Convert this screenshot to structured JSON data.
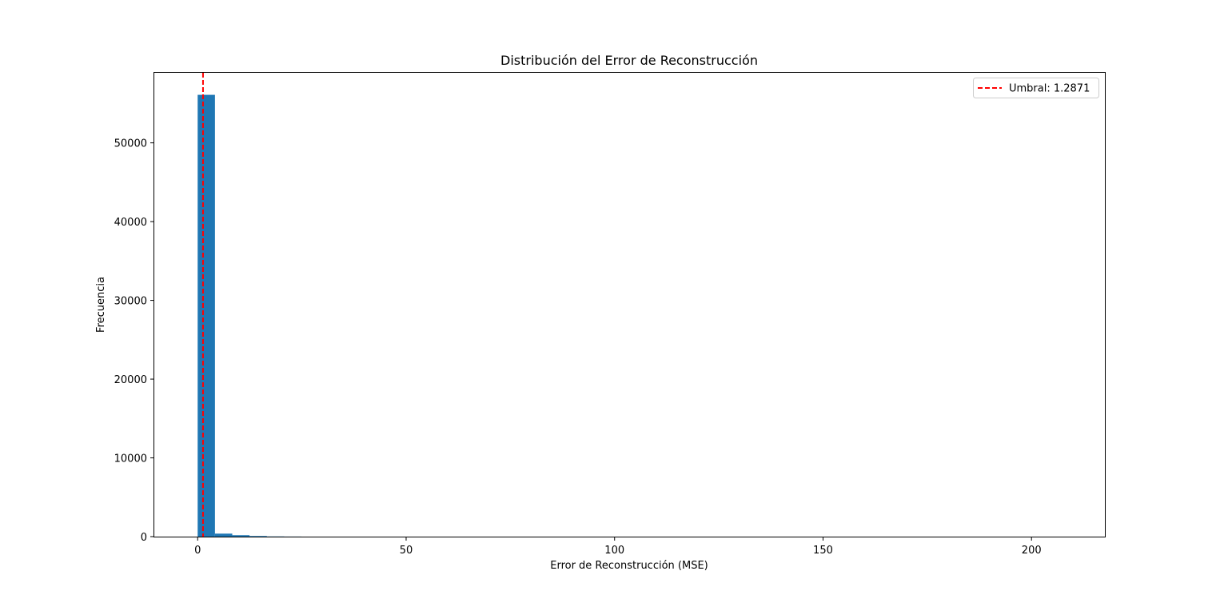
{
  "chart_data": {
    "type": "bar",
    "title": "Distribución del Error de Reconstrucción",
    "xlabel": "Error de Reconstrucción (MSE)",
    "ylabel": "Frecuencia",
    "xlim": [
      -10.4,
      217.6
    ],
    "ylim": [
      0,
      58900
    ],
    "xticks": [
      0,
      50,
      100,
      150,
      200
    ],
    "xtick_labels": [
      "0",
      "50",
      "100",
      "150",
      "200"
    ],
    "yticks": [
      0,
      10000,
      20000,
      30000,
      40000,
      50000
    ],
    "ytick_labels": [
      "0",
      "10000",
      "20000",
      "30000",
      "40000",
      "50000"
    ],
    "bin_width": 4.15,
    "bins": [
      {
        "x0": 0.0,
        "x1": 4.15,
        "count": 56100
      },
      {
        "x0": 4.15,
        "x1": 8.3,
        "count": 380
      },
      {
        "x0": 8.3,
        "x1": 12.45,
        "count": 180
      },
      {
        "x0": 12.45,
        "x1": 16.6,
        "count": 80
      },
      {
        "x0": 16.6,
        "x1": 20.75,
        "count": 25
      },
      {
        "x0": 20.75,
        "x1": 24.9,
        "count": 10
      }
    ],
    "bar_color": "#1f77b4",
    "threshold": {
      "value": 1.2871,
      "label": "Umbral: 1.2871",
      "color": "#ff0000",
      "style": "dashed"
    },
    "legend_position": "top-right",
    "grid": false
  }
}
